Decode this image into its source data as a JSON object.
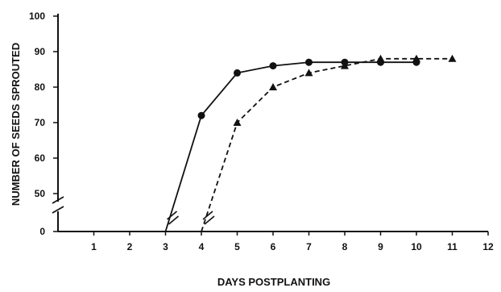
{
  "chart_data": {
    "type": "line",
    "title": "",
    "xlabel": "DAYS POSTPLANTING",
    "ylabel": "NUMBER OF SEEDS SPROUTED",
    "xlim": [
      0,
      12
    ],
    "ylim": [
      0,
      100
    ],
    "axis_break": "between 0 and 40",
    "grid": false,
    "legend": "none",
    "x_ticks": [
      "1",
      "2",
      "3",
      "4",
      "5",
      "6",
      "7",
      "8",
      "9",
      "10",
      "11",
      "12"
    ],
    "y_ticks": [
      "0",
      "50",
      "60",
      "70",
      "80",
      "90",
      "100"
    ],
    "series": [
      {
        "style": "solid",
        "marker": "circle",
        "color": "#111111",
        "x": [
          3,
          4,
          5,
          6,
          7,
          8,
          9,
          10
        ],
        "y": [
          0,
          72,
          84,
          86,
          87,
          87,
          87,
          87
        ]
      },
      {
        "style": "dashed",
        "marker": "triangle",
        "color": "#111111",
        "x": [
          4,
          5,
          6,
          7,
          8,
          9,
          10,
          11
        ],
        "y": [
          0,
          70,
          80,
          84,
          86,
          88,
          88,
          88
        ]
      }
    ]
  }
}
